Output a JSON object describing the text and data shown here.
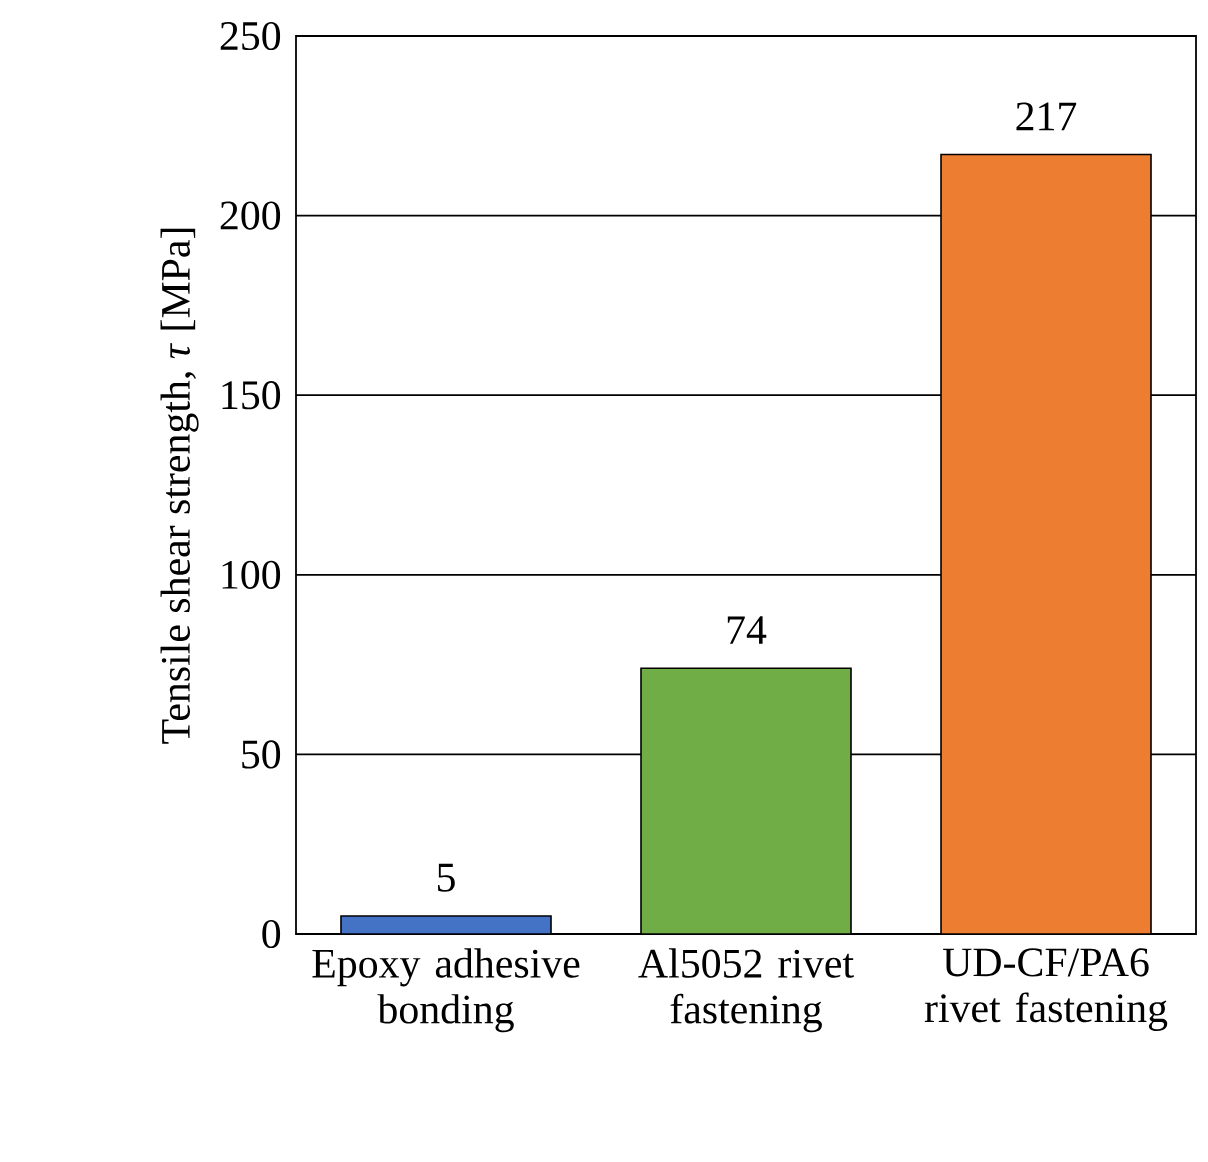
{
  "chart_data": {
    "type": "bar",
    "categories": [
      "Epoxy adhesive bonding",
      "Al5052 rivet fastening",
      "UD-CF/PA6 rivet fastening"
    ],
    "values": [
      5,
      74,
      217
    ],
    "colors": [
      "#4472c4",
      "#70ad47",
      "#ed7d31"
    ],
    "ylabel": "Tensile shear strength, *τ* [MPa]",
    "ylim": [
      0,
      250
    ],
    "yticks": [
      0,
      50,
      100,
      150,
      200,
      250
    ],
    "grid": "y",
    "data_labels": true
  }
}
